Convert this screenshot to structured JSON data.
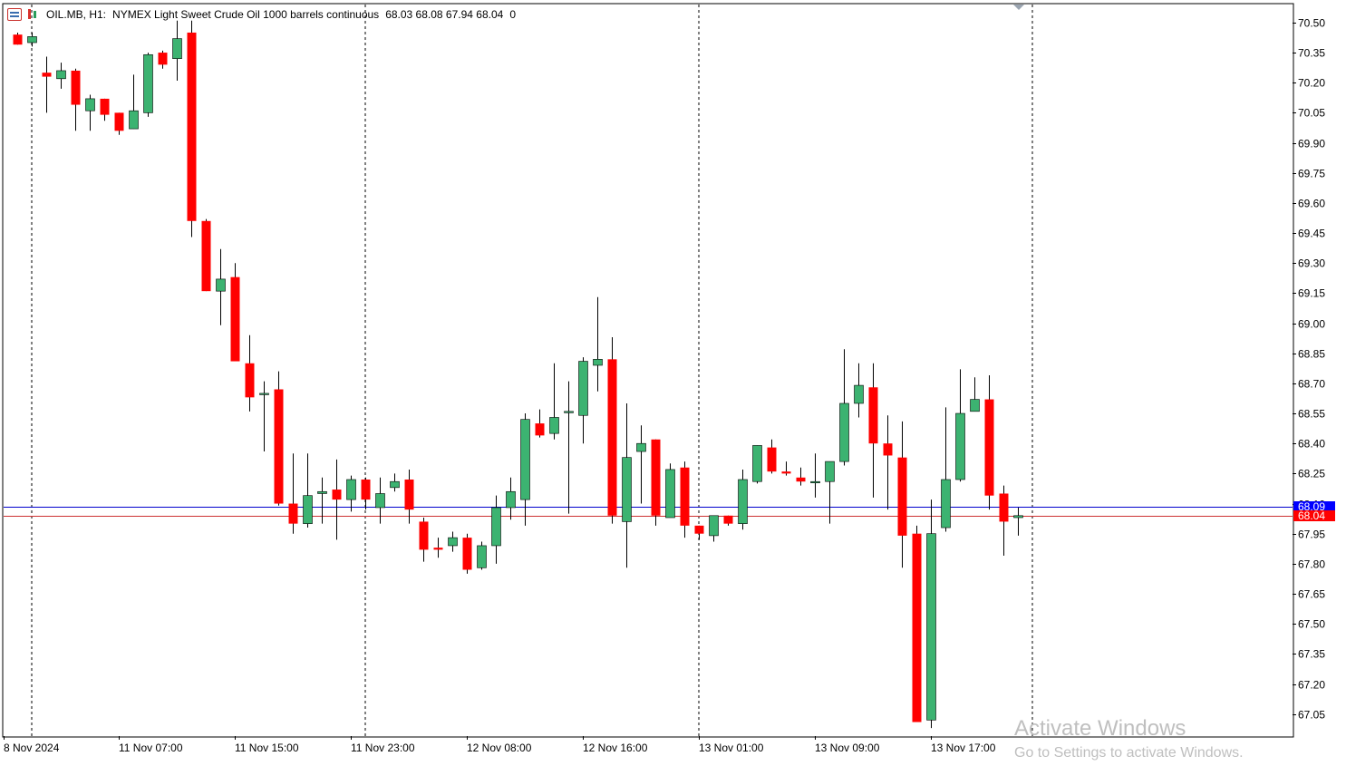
{
  "header": {
    "symbol": "OIL.MB, H1:",
    "description": "NYMEX Light Sweet Crude Oil 1000 barrels continuous",
    "ohlc": "68.03 68.08 67.94 68.04",
    "volume": "0"
  },
  "watermark": {
    "title": "Activate Windows",
    "subtitle": "Go to Settings to activate Windows."
  },
  "colors": {
    "bull": "#3cb371",
    "bear": "#ff0000",
    "bid_line": "#0000cd",
    "ask_line": "#cd3232",
    "grid_separator": "#000000",
    "background": "#ffffff",
    "price_tag_blue": "#0000ff",
    "price_tag_red": "#ff0000"
  },
  "chart_data": {
    "type": "candlestick",
    "ylim": [
      66.94,
      70.59
    ],
    "y_ticks": [
      "70.50",
      "70.35",
      "70.20",
      "70.05",
      "69.90",
      "69.75",
      "69.60",
      "69.45",
      "69.30",
      "69.15",
      "69.00",
      "68.85",
      "68.70",
      "68.55",
      "68.40",
      "68.25",
      "68.10",
      "67.95",
      "67.80",
      "67.65",
      "67.50",
      "67.35",
      "67.20",
      "67.05"
    ],
    "x_labels": [
      "8 Nov 2024",
      "11 Nov 07:00",
      "11 Nov 15:00",
      "11 Nov 23:00",
      "12 Nov 08:00",
      "12 Nov 16:00",
      "13 Nov 01:00",
      "13 Nov 09:00",
      "13 Nov 17:00"
    ],
    "price_lines": [
      {
        "label": "68.09",
        "value": 68.085
      },
      {
        "label": "68.04",
        "value": 68.04
      }
    ],
    "candles": [
      {
        "o": 70.44,
        "h": 70.45,
        "l": 70.4,
        "c": 70.39
      },
      {
        "o": 70.4,
        "h": 70.45,
        "l": 70.38,
        "c": 70.43
      },
      {
        "o": 70.25,
        "h": 70.33,
        "l": 70.05,
        "c": 70.23
      },
      {
        "o": 70.22,
        "h": 70.3,
        "l": 70.17,
        "c": 70.26
      },
      {
        "o": 70.26,
        "h": 70.27,
        "l": 69.96,
        "c": 70.09
      },
      {
        "o": 70.06,
        "h": 70.14,
        "l": 69.96,
        "c": 70.12
      },
      {
        "o": 70.12,
        "h": 70.11,
        "l": 70.01,
        "c": 70.04
      },
      {
        "o": 70.05,
        "h": 70.04,
        "l": 69.94,
        "c": 69.96
      },
      {
        "o": 69.97,
        "h": 70.24,
        "l": 69.97,
        "c": 70.06
      },
      {
        "o": 70.05,
        "h": 70.35,
        "l": 70.03,
        "c": 70.34
      },
      {
        "o": 70.35,
        "h": 70.36,
        "l": 70.27,
        "c": 70.29
      },
      {
        "o": 70.32,
        "h": 70.51,
        "l": 70.21,
        "c": 70.42
      },
      {
        "o": 70.45,
        "h": 70.51,
        "l": 69.43,
        "c": 69.51
      },
      {
        "o": 69.51,
        "h": 69.52,
        "l": 69.16,
        "c": 69.16
      },
      {
        "o": 69.16,
        "h": 69.37,
        "l": 68.99,
        "c": 69.22
      },
      {
        "o": 69.23,
        "h": 69.3,
        "l": 68.81,
        "c": 68.81
      },
      {
        "o": 68.8,
        "h": 68.94,
        "l": 68.56,
        "c": 68.63
      },
      {
        "o": 68.65,
        "h": 68.71,
        "l": 68.36,
        "c": 68.65
      },
      {
        "o": 68.67,
        "h": 68.76,
        "l": 68.09,
        "c": 68.1
      },
      {
        "o": 68.1,
        "h": 68.35,
        "l": 67.95,
        "c": 68.0
      },
      {
        "o": 68.0,
        "h": 68.35,
        "l": 67.98,
        "c": 68.14
      },
      {
        "o": 68.15,
        "h": 68.23,
        "l": 68.0,
        "c": 68.16
      },
      {
        "o": 68.17,
        "h": 68.32,
        "l": 67.92,
        "c": 68.12
      },
      {
        "o": 68.12,
        "h": 68.24,
        "l": 68.06,
        "c": 68.22
      },
      {
        "o": 68.22,
        "h": 68.23,
        "l": 68.07,
        "c": 68.12
      },
      {
        "o": 68.08,
        "h": 68.23,
        "l": 68.0,
        "c": 68.15
      },
      {
        "o": 68.18,
        "h": 68.25,
        "l": 68.16,
        "c": 68.21
      },
      {
        "o": 68.22,
        "h": 68.27,
        "l": 68.0,
        "c": 68.07
      },
      {
        "o": 68.01,
        "h": 68.03,
        "l": 67.81,
        "c": 67.87
      },
      {
        "o": 67.88,
        "h": 67.93,
        "l": 67.83,
        "c": 67.87
      },
      {
        "o": 67.89,
        "h": 67.96,
        "l": 67.86,
        "c": 67.93
      },
      {
        "o": 67.93,
        "h": 67.95,
        "l": 67.75,
        "c": 67.77
      },
      {
        "o": 67.78,
        "h": 67.91,
        "l": 67.77,
        "c": 67.89
      },
      {
        "o": 67.89,
        "h": 68.14,
        "l": 67.8,
        "c": 68.08
      },
      {
        "o": 68.08,
        "h": 68.23,
        "l": 68.02,
        "c": 68.16
      },
      {
        "o": 68.12,
        "h": 68.55,
        "l": 67.99,
        "c": 68.52
      },
      {
        "o": 68.5,
        "h": 68.57,
        "l": 68.43,
        "c": 68.44
      },
      {
        "o": 68.45,
        "h": 68.8,
        "l": 68.42,
        "c": 68.53
      },
      {
        "o": 68.56,
        "h": 68.71,
        "l": 68.05,
        "c": 68.56
      },
      {
        "o": 68.54,
        "h": 68.83,
        "l": 68.4,
        "c": 68.81
      },
      {
        "o": 68.79,
        "h": 69.13,
        "l": 68.66,
        "c": 68.82
      },
      {
        "o": 68.82,
        "h": 68.93,
        "l": 68.0,
        "c": 68.04
      },
      {
        "o": 68.01,
        "h": 68.6,
        "l": 67.78,
        "c": 68.33
      },
      {
        "o": 68.36,
        "h": 68.49,
        "l": 68.1,
        "c": 68.4
      },
      {
        "o": 68.42,
        "h": 68.42,
        "l": 67.99,
        "c": 68.04
      },
      {
        "o": 68.03,
        "h": 68.3,
        "l": 68.03,
        "c": 68.27
      },
      {
        "o": 68.28,
        "h": 68.31,
        "l": 67.93,
        "c": 67.99
      },
      {
        "o": 67.99,
        "h": 67.97,
        "l": 67.92,
        "c": 67.95
      },
      {
        "o": 67.94,
        "h": 68.04,
        "l": 67.91,
        "c": 68.04
      },
      {
        "o": 68.04,
        "h": 68.04,
        "l": 67.99,
        "c": 68.0
      },
      {
        "o": 68.0,
        "h": 68.27,
        "l": 67.97,
        "c": 68.22
      },
      {
        "o": 68.21,
        "h": 68.39,
        "l": 68.2,
        "c": 68.39
      },
      {
        "o": 68.38,
        "h": 68.42,
        "l": 68.25,
        "c": 68.26
      },
      {
        "o": 68.26,
        "h": 68.31,
        "l": 68.24,
        "c": 68.25
      },
      {
        "o": 68.23,
        "h": 68.28,
        "l": 68.19,
        "c": 68.21
      },
      {
        "o": 68.21,
        "h": 68.35,
        "l": 68.13,
        "c": 68.21
      },
      {
        "o": 68.21,
        "h": 68.31,
        "l": 68.0,
        "c": 68.31
      },
      {
        "o": 68.31,
        "h": 68.87,
        "l": 68.29,
        "c": 68.6
      },
      {
        "o": 68.6,
        "h": 68.8,
        "l": 68.53,
        "c": 68.69
      },
      {
        "o": 68.68,
        "h": 68.8,
        "l": 68.13,
        "c": 68.4
      },
      {
        "o": 68.4,
        "h": 68.54,
        "l": 68.07,
        "c": 68.34
      },
      {
        "o": 68.33,
        "h": 68.51,
        "l": 67.78,
        "c": 67.94
      },
      {
        "o": 67.95,
        "h": 67.99,
        "l": 67.01,
        "c": 67.01
      },
      {
        "o": 67.02,
        "h": 68.12,
        "l": 66.98,
        "c": 67.95
      },
      {
        "o": 67.98,
        "h": 68.58,
        "l": 67.96,
        "c": 68.22
      },
      {
        "o": 68.22,
        "h": 68.77,
        "l": 68.21,
        "c": 68.55
      },
      {
        "o": 68.56,
        "h": 68.73,
        "l": 68.57,
        "c": 68.62
      },
      {
        "o": 68.62,
        "h": 68.74,
        "l": 68.07,
        "c": 68.14
      },
      {
        "o": 68.15,
        "h": 68.19,
        "l": 67.84,
        "c": 68.01
      },
      {
        "o": 68.03,
        "h": 68.08,
        "l": 67.94,
        "c": 68.04
      }
    ]
  }
}
